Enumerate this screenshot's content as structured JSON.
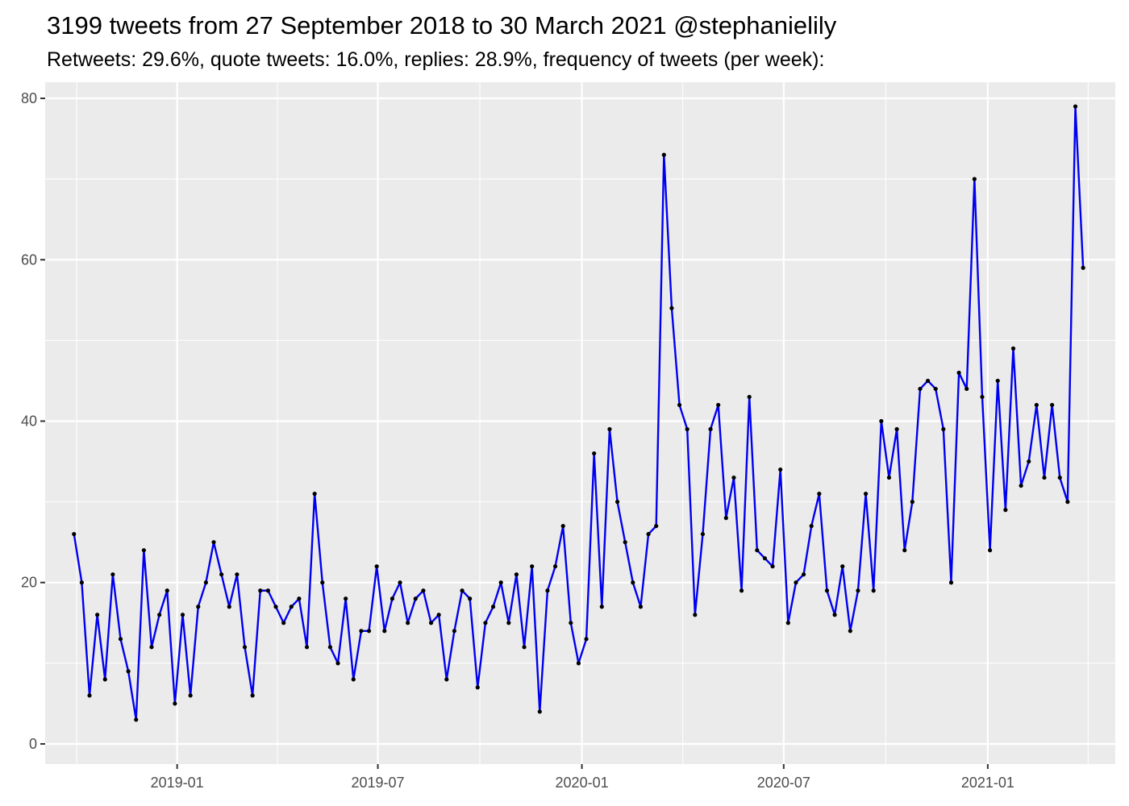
{
  "chart_data": {
    "type": "line",
    "title": "3199 tweets from 27 September 2018 to 30 March 2021 @stephanielily",
    "subtitle": "Retweets: 29.6%, quote tweets: 16.0%, replies: 28.9%, frequency of tweets (per week):",
    "xlabel": "",
    "ylabel": "",
    "x_start_date": "2018-09-30",
    "x_step_days": 7,
    "values": [
      26,
      20,
      6,
      16,
      8,
      21,
      13,
      9,
      3,
      24,
      12,
      16,
      19,
      5,
      16,
      6,
      17,
      20,
      25,
      21,
      17,
      21,
      12,
      6,
      19,
      19,
      17,
      15,
      17,
      18,
      12,
      31,
      20,
      12,
      10,
      18,
      8,
      14,
      14,
      22,
      14,
      18,
      20,
      15,
      18,
      19,
      15,
      16,
      8,
      14,
      19,
      18,
      7,
      15,
      17,
      20,
      15,
      21,
      12,
      22,
      4,
      19,
      22,
      27,
      15,
      10,
      13,
      36,
      17,
      39,
      30,
      25,
      20,
      17,
      26,
      27,
      73,
      54,
      42,
      39,
      16,
      26,
      39,
      42,
      28,
      33,
      19,
      43,
      24,
      23,
      22,
      34,
      15,
      20,
      21,
      27,
      31,
      19,
      16,
      22,
      14,
      19,
      31,
      19,
      40,
      33,
      39,
      24,
      30,
      44,
      45,
      44,
      39,
      20,
      46,
      44,
      70,
      43,
      24,
      45,
      29,
      49,
      32,
      35,
      42,
      33,
      42,
      33,
      30,
      79,
      59
    ],
    "x_tick_labels": [
      "2019-01",
      "2019-07",
      "2020-01",
      "2020-07",
      "2021-01"
    ],
    "x_tick_dates": [
      "2019-01-01",
      "2019-07-01",
      "2020-01-01",
      "2020-07-01",
      "2021-01-01"
    ],
    "x_range": [
      "2018-09-04",
      "2021-04-26"
    ],
    "y_ticks": [
      0,
      20,
      40,
      60,
      80
    ],
    "ylim": [
      -2.5,
      82
    ],
    "grid": true,
    "colors": {
      "line": "#0000ee",
      "points": "#000000",
      "panel_background": "#ebebeb",
      "grid": "#ffffff"
    }
  }
}
